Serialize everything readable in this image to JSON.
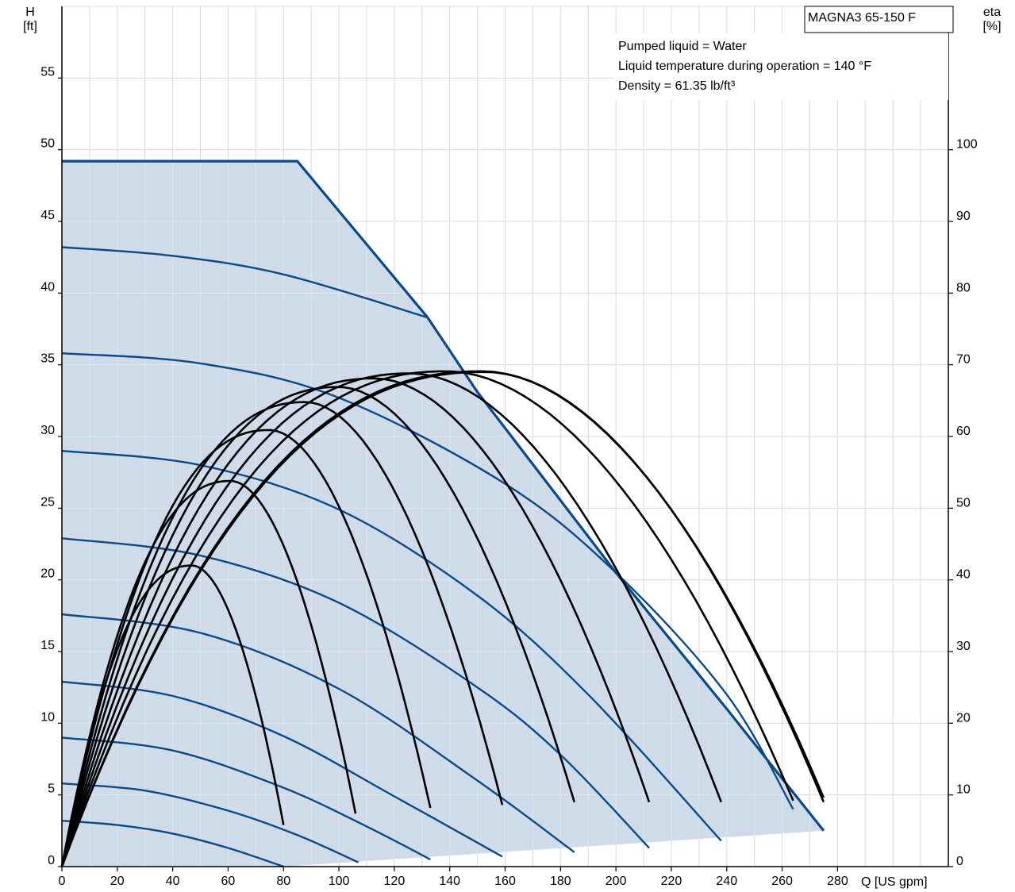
{
  "chart_data": {
    "type": "line",
    "title": "MAGNA3 65-150 F",
    "annotations": [
      "Pumped liquid = Water",
      "Liquid temperature during operation = 140 °F",
      "Density = 61.35 lb/ft³"
    ],
    "xlabel": "Q [US gpm]",
    "ylabel": [
      "H",
      "[ft]"
    ],
    "y2label": [
      "eta",
      "[%]"
    ],
    "xlim": [
      0,
      320
    ],
    "ylim": [
      0,
      60
    ],
    "y2lim": [
      0,
      120
    ],
    "x_ticks": [
      0,
      20,
      40,
      60,
      80,
      100,
      120,
      140,
      160,
      180,
      200,
      220,
      240,
      260,
      280
    ],
    "y_ticks": [
      0,
      5,
      10,
      15,
      20,
      25,
      30,
      35,
      40,
      45,
      50,
      55
    ],
    "y2_ticks": [
      0,
      10,
      20,
      30,
      40,
      50,
      60,
      70,
      80,
      90,
      100
    ],
    "grid": true,
    "colors": {
      "head": "#0b4a88",
      "efficiency": "#000000",
      "area": "#cfdbe8"
    },
    "operating_area": {
      "max_curve": {
        "x": [
          0,
          85,
          132,
          150,
          200,
          240,
          275
        ],
        "y": [
          49.2,
          49.2,
          38.3,
          33.1,
          20.5,
          11.0,
          2.5
        ]
      },
      "min_curve": {
        "x": [
          80,
          275
        ],
        "y": [
          0,
          2.5
        ]
      }
    },
    "head_series": [
      {
        "H0": 43.2,
        "x": [
          0,
          40,
          80,
          132
        ],
        "y": [
          43.2,
          42.6,
          41.3,
          38.3
        ]
      },
      {
        "H0": 35.8,
        "x": [
          0,
          50,
          100,
          160,
          200,
          240,
          264
        ],
        "y": [
          35.8,
          35.1,
          32.7,
          26.7,
          20.5,
          12.0,
          4.0
        ]
      },
      {
        "H0": 29.0,
        "x": [
          0,
          50,
          100,
          150,
          190,
          238
        ],
        "y": [
          29.0,
          28.0,
          24.9,
          18.9,
          12.0,
          1.8
        ]
      },
      {
        "H0": 22.9,
        "x": [
          0,
          50,
          100,
          150,
          180,
          212
        ],
        "y": [
          22.9,
          21.7,
          18.4,
          12.5,
          7.8,
          1.3
        ]
      },
      {
        "H0": 17.6,
        "x": [
          0,
          50,
          100,
          150,
          185
        ],
        "y": [
          17.6,
          16.3,
          12.4,
          6.0,
          1.0
        ]
      },
      {
        "H0": 12.9,
        "x": [
          0,
          40,
          80,
          120,
          159
        ],
        "y": [
          12.9,
          11.9,
          9.1,
          4.9,
          0.7
        ]
      },
      {
        "H0": 9.0,
        "x": [
          0,
          40,
          80,
          110,
          133
        ],
        "y": [
          9.0,
          8.1,
          5.5,
          2.8,
          0.5
        ]
      },
      {
        "H0": 5.8,
        "x": [
          0,
          30,
          60,
          85,
          107
        ],
        "y": [
          5.8,
          5.3,
          3.9,
          2.2,
          0.3
        ]
      },
      {
        "H0": 3.2,
        "x": [
          0,
          20,
          40,
          60,
          80
        ],
        "y": [
          3.2,
          2.9,
          2.3,
          1.3,
          0.0
        ]
      }
    ],
    "eta_series": [
      {
        "peak_q": 47,
        "peak_eta": 42.0,
        "end_q": 80,
        "end_eta": 5.8
      },
      {
        "peak_q": 61,
        "peak_eta": 53.8,
        "end_q": 106,
        "end_eta": 7.4
      },
      {
        "peak_q": 75,
        "peak_eta": 60.9,
        "end_q": 133,
        "end_eta": 8.2
      },
      {
        "peak_q": 88,
        "peak_eta": 64.8,
        "end_q": 159,
        "end_eta": 8.6
      },
      {
        "peak_q": 100,
        "peak_eta": 66.9,
        "end_q": 185,
        "end_eta": 9.0
      },
      {
        "peak_q": 113,
        "peak_eta": 68.1,
        "end_q": 212,
        "end_eta": 9.0
      },
      {
        "peak_q": 126,
        "peak_eta": 68.8,
        "end_q": 238,
        "end_eta": 9.0
      },
      {
        "peak_q": 139,
        "peak_eta": 69.1,
        "end_q": 264,
        "end_eta": 9.2
      },
      {
        "peak_q": 152,
        "peak_eta": 69.1,
        "end_q": 275,
        "end_eta": 9.6
      },
      {
        "peak_q": 153,
        "peak_eta": 69.0,
        "end_q": 275,
        "end_eta": 9.0
      }
    ]
  }
}
